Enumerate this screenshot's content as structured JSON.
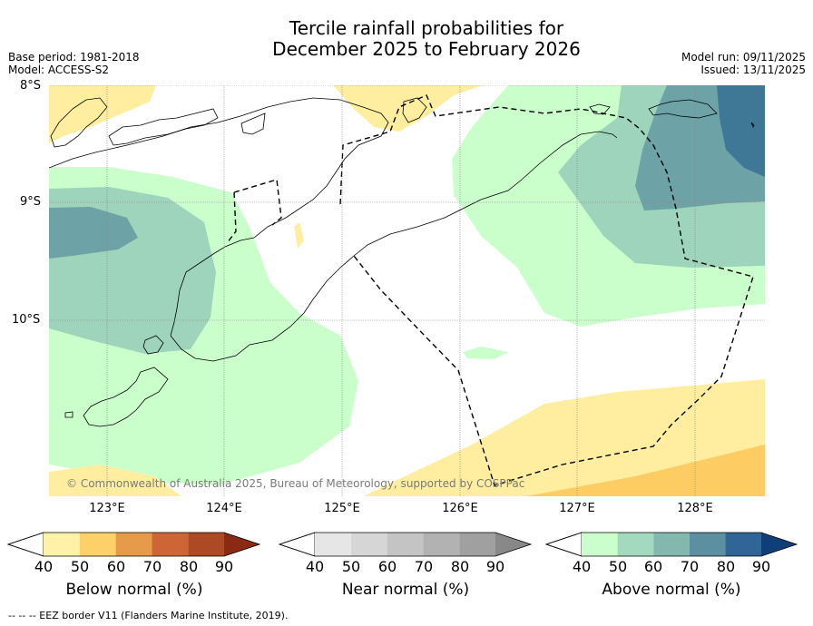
{
  "title": {
    "line1": "Tercile rainfall probabilities for",
    "line2": "December 2025 to February 2026"
  },
  "meta_left": {
    "base_period": "Base period: 1981-2018",
    "model": "Model: ACCESS-S2"
  },
  "meta_right": {
    "model_run": "Model run: 09/11/2025",
    "issued": "Issued: 13/11/2025"
  },
  "map": {
    "lat_labels": [
      "8°S",
      "9°S",
      "10°S"
    ],
    "lon_labels": [
      "123°E",
      "124°E",
      "125°E",
      "126°E",
      "127°E",
      "128°E"
    ],
    "copyright": "© Commonwealth of Australia 2025, Bureau of Meteorology, supported by COSPPac"
  },
  "colorbars": [
    {
      "label": "Below normal (%)",
      "ticks": [
        "40",
        "50",
        "60",
        "70",
        "80",
        "90"
      ],
      "colors": [
        "#fff2a8",
        "#fdd06a",
        "#e59b4a",
        "#cd6536",
        "#ad4a25",
        "#8b2a12"
      ]
    },
    {
      "label": "Near normal (%)",
      "ticks": [
        "40",
        "50",
        "60",
        "70",
        "80",
        "90"
      ],
      "colors": [
        "#e6e6e6",
        "#d6d6d6",
        "#c4c4c4",
        "#b2b2b2",
        "#a0a0a0",
        "#888888"
      ]
    },
    {
      "label": "Above normal (%)",
      "ticks": [
        "40",
        "50",
        "60",
        "70",
        "80",
        "90"
      ],
      "colors": [
        "#caffcc",
        "#a3d9be",
        "#82b8ae",
        "#5c8fa0",
        "#2f6597",
        "#0f3f78"
      ]
    }
  ],
  "footnote": "--  --  -- EEZ border V11 (Flanders Marine Institute, 2019).",
  "colors": {
    "below_50": "#ffeea0",
    "below_60": "#fdcd63",
    "above_40": "#caffcc",
    "above_50": "#9dd4bb",
    "above_60": "#6da3a6",
    "above_70": "#3f7896"
  }
}
